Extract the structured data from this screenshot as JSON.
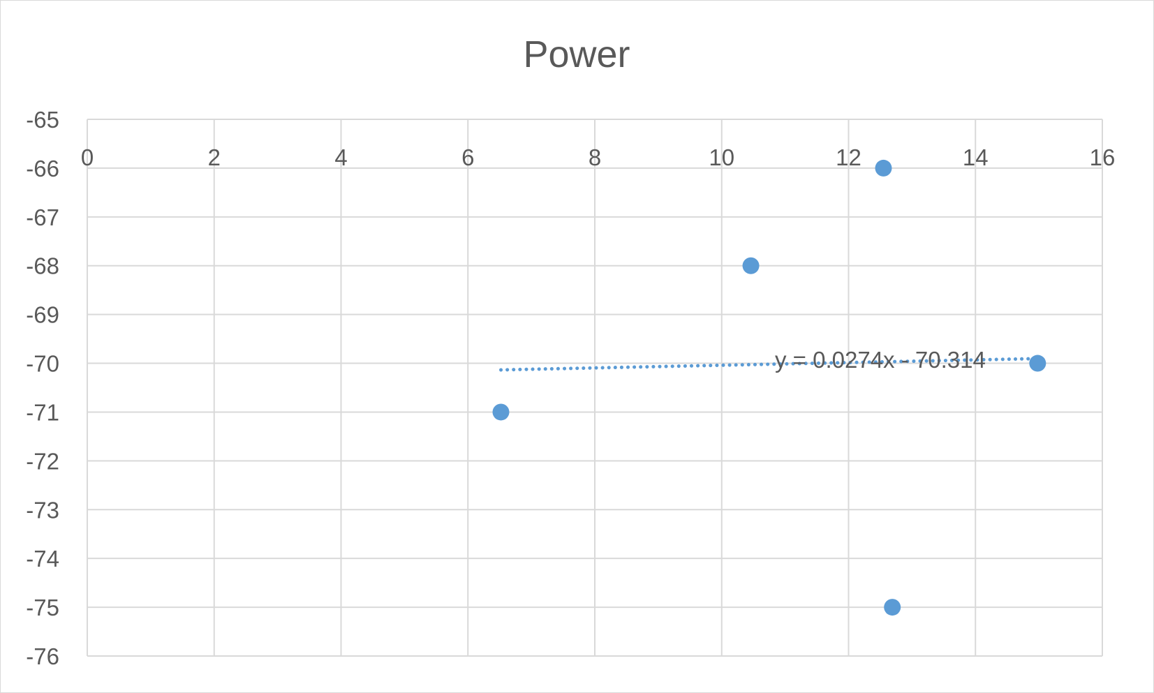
{
  "chart_data": {
    "type": "scatter",
    "title": "Power",
    "xlabel": "",
    "ylabel": "",
    "xlim": [
      0,
      16
    ],
    "ylim": [
      -76,
      -65
    ],
    "x_ticks": [
      0,
      2,
      4,
      6,
      8,
      10,
      12,
      14,
      16
    ],
    "y_ticks": [
      -65,
      -66,
      -67,
      -68,
      -69,
      -70,
      -71,
      -72,
      -73,
      -74,
      -75,
      -76
    ],
    "x_axis_position": "top",
    "grid": true,
    "series": [
      {
        "points": [
          {
            "x": 6.52,
            "y": -71
          },
          {
            "x": 10.46,
            "y": -68
          },
          {
            "x": 12.55,
            "y": -66
          },
          {
            "x": 12.69,
            "y": -75
          },
          {
            "x": 14.98,
            "y": -70
          }
        ],
        "color": "#5b9bd5"
      }
    ],
    "trendline": {
      "type": "linear",
      "slope": 0.0274,
      "intercept": -70.314,
      "x_range": [
        6.52,
        14.98
      ],
      "label": "y = 0.0274x - 70.314",
      "style": "dotted",
      "color": "#5b9bd5"
    },
    "gridline_color": "#d9d9d9",
    "text_color": "#595959"
  }
}
